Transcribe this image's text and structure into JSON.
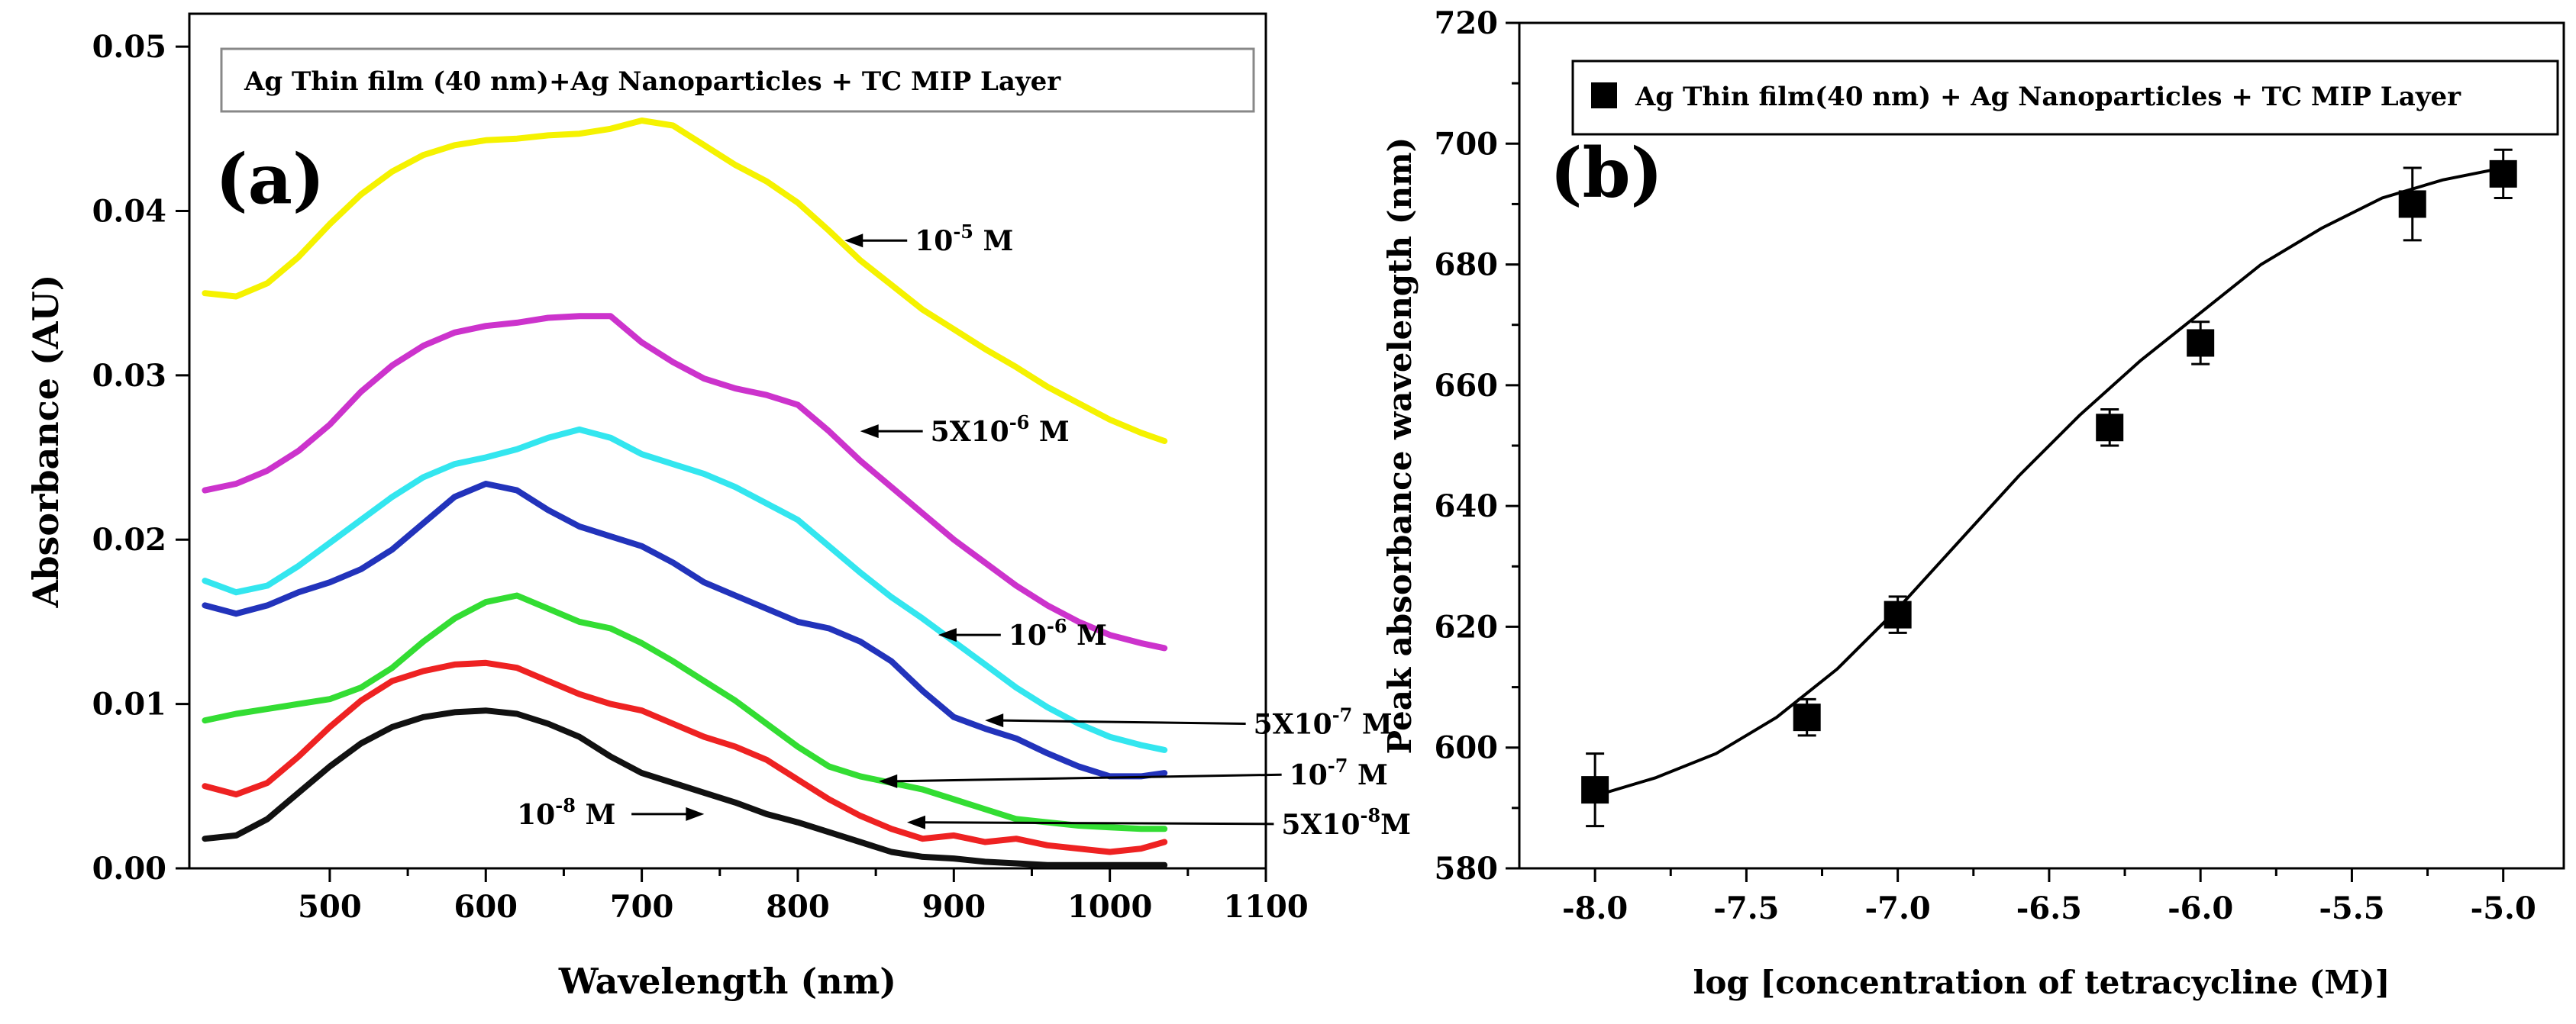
{
  "chart_data": [
    {
      "type": "line",
      "panel_label": "(a)",
      "legend_title": "Ag Thin film (40 nm)+Ag Nanoparticles + TC MIP Layer",
      "xlabel": "Wavelength (nm)",
      "ylabel": "Absorbance (AU)",
      "xlim": [
        410,
        1100
      ],
      "ylim": [
        0.0,
        0.052
      ],
      "x_ticks": [
        500,
        600,
        700,
        800,
        900,
        1000,
        1100
      ],
      "x_tick_labels": [
        "500",
        "600",
        "700",
        "800",
        "900",
        "1000",
        "1100"
      ],
      "y_ticks": [
        0.0,
        0.01,
        0.02,
        0.03,
        0.04,
        0.05
      ],
      "y_tick_labels": [
        "0.00",
        "0.01",
        "0.02",
        "0.03",
        "0.04",
        "0.05"
      ],
      "series": [
        {
          "name": "10-5 M",
          "label_base": "10",
          "label_sup": "-5",
          "label_unit": " M",
          "color": "#f5f200",
          "x": [
            420,
            440,
            460,
            480,
            500,
            520,
            540,
            560,
            580,
            600,
            620,
            640,
            660,
            680,
            700,
            720,
            740,
            760,
            780,
            800,
            820,
            840,
            860,
            880,
            900,
            920,
            940,
            960,
            980,
            1000,
            1020,
            1035
          ],
          "values": [
            0.035,
            0.0348,
            0.0356,
            0.0372,
            0.0392,
            0.041,
            0.0424,
            0.0434,
            0.044,
            0.0443,
            0.0444,
            0.0446,
            0.0447,
            0.045,
            0.0455,
            0.0452,
            0.044,
            0.0428,
            0.0418,
            0.0405,
            0.0388,
            0.037,
            0.0355,
            0.034,
            0.0328,
            0.0316,
            0.0305,
            0.0293,
            0.0283,
            0.0273,
            0.0265,
            0.026
          ],
          "arrow_at": [
            830,
            0.0382
          ],
          "label_at": [
            875,
            0.0382
          ]
        },
        {
          "name": "5X10-6 M",
          "label_base": "5X10",
          "label_sup": "-6",
          "label_unit": " M",
          "color": "#cc33cc",
          "x": [
            420,
            440,
            460,
            480,
            500,
            520,
            540,
            560,
            580,
            600,
            620,
            640,
            660,
            680,
            700,
            720,
            740,
            760,
            780,
            800,
            820,
            840,
            860,
            880,
            900,
            920,
            940,
            960,
            980,
            1000,
            1020,
            1035
          ],
          "values": [
            0.023,
            0.0234,
            0.0242,
            0.0254,
            0.027,
            0.029,
            0.0306,
            0.0318,
            0.0326,
            0.033,
            0.0332,
            0.0335,
            0.0336,
            0.0336,
            0.032,
            0.0308,
            0.0298,
            0.0292,
            0.0288,
            0.0282,
            0.0266,
            0.0248,
            0.0232,
            0.0216,
            0.02,
            0.0186,
            0.0172,
            0.016,
            0.015,
            0.0142,
            0.0137,
            0.0134
          ],
          "arrow_at": [
            840,
            0.0266
          ],
          "label_at": [
            885,
            0.0266
          ]
        },
        {
          "name": "10-6 M",
          "label_base": "10",
          "label_sup": "-6",
          "label_unit": " M",
          "color": "#33e6ef",
          "x": [
            420,
            440,
            460,
            480,
            500,
            520,
            540,
            560,
            580,
            600,
            620,
            640,
            660,
            680,
            700,
            720,
            740,
            760,
            780,
            800,
            820,
            840,
            860,
            880,
            900,
            920,
            940,
            960,
            980,
            1000,
            1020,
            1035
          ],
          "values": [
            0.0175,
            0.0168,
            0.0172,
            0.0184,
            0.0198,
            0.0212,
            0.0226,
            0.0238,
            0.0246,
            0.025,
            0.0255,
            0.0262,
            0.0267,
            0.0262,
            0.0252,
            0.0246,
            0.024,
            0.0232,
            0.0222,
            0.0212,
            0.0196,
            0.018,
            0.0165,
            0.0152,
            0.0138,
            0.0124,
            0.011,
            0.0098,
            0.0088,
            0.008,
            0.0075,
            0.0072
          ],
          "arrow_at": [
            890,
            0.0142
          ],
          "label_at": [
            935,
            0.0142
          ]
        },
        {
          "name": "5X10-7 M",
          "label_base": "5X10",
          "label_sup": "-7",
          "label_unit": " M",
          "color": "#2233bb",
          "x": [
            420,
            440,
            460,
            480,
            500,
            520,
            540,
            560,
            580,
            600,
            620,
            640,
            660,
            680,
            700,
            720,
            740,
            760,
            780,
            800,
            820,
            840,
            860,
            880,
            900,
            920,
            940,
            960,
            980,
            1000,
            1020,
            1035
          ],
          "values": [
            0.016,
            0.0155,
            0.016,
            0.0168,
            0.0174,
            0.0182,
            0.0194,
            0.021,
            0.0226,
            0.0234,
            0.023,
            0.0218,
            0.0208,
            0.0202,
            0.0196,
            0.0186,
            0.0174,
            0.0166,
            0.0158,
            0.015,
            0.0146,
            0.0138,
            0.0126,
            0.0108,
            0.0092,
            0.0085,
            0.0079,
            0.007,
            0.0062,
            0.0056,
            0.0056,
            0.0058
          ],
          "arrow_at": [
            920,
            0.009
          ],
          "label_at": [
            1092,
            0.0088
          ]
        },
        {
          "name": "10-7 M",
          "label_base": "10",
          "label_sup": "-7",
          "label_unit": " M",
          "color": "#33dd33",
          "x": [
            420,
            440,
            460,
            480,
            500,
            520,
            540,
            560,
            580,
            600,
            620,
            640,
            660,
            680,
            700,
            720,
            740,
            760,
            780,
            800,
            820,
            840,
            860,
            880,
            900,
            920,
            940,
            960,
            980,
            1000,
            1020,
            1035
          ],
          "values": [
            0.009,
            0.0094,
            0.0097,
            0.01,
            0.0103,
            0.011,
            0.0122,
            0.0138,
            0.0152,
            0.0162,
            0.0166,
            0.0158,
            0.015,
            0.0146,
            0.0137,
            0.0126,
            0.0114,
            0.0102,
            0.0088,
            0.0074,
            0.0062,
            0.0056,
            0.0052,
            0.0048,
            0.0042,
            0.0036,
            0.003,
            0.0028,
            0.0026,
            0.0025,
            0.0024,
            0.0024
          ],
          "arrow_at": [
            852,
            0.0053
          ],
          "label_at": [
            1115,
            0.0057
          ]
        },
        {
          "name": "5X10-8M",
          "label_base": "5X10",
          "label_sup": "-8",
          "label_unit": "M",
          "color": "#ee2222",
          "x": [
            420,
            440,
            460,
            480,
            500,
            520,
            540,
            560,
            580,
            600,
            620,
            640,
            660,
            680,
            700,
            720,
            740,
            760,
            780,
            800,
            820,
            840,
            860,
            880,
            900,
            920,
            940,
            960,
            980,
            1000,
            1020,
            1035
          ],
          "values": [
            0.005,
            0.0045,
            0.0052,
            0.0068,
            0.0086,
            0.0102,
            0.0114,
            0.012,
            0.0124,
            0.0125,
            0.0122,
            0.0114,
            0.0106,
            0.01,
            0.0096,
            0.0088,
            0.008,
            0.0074,
            0.0066,
            0.0054,
            0.0042,
            0.0032,
            0.0024,
            0.0018,
            0.002,
            0.0016,
            0.0018,
            0.0014,
            0.0012,
            0.001,
            0.0012,
            0.0016
          ],
          "arrow_at": [
            870,
            0.0028
          ],
          "label_at": [
            1110,
            0.0027
          ]
        },
        {
          "name": "10-8 M",
          "label_base": "10",
          "label_sup": "-8",
          "label_unit": " M",
          "color": "#111111",
          "x": [
            420,
            440,
            460,
            480,
            500,
            520,
            540,
            560,
            580,
            600,
            620,
            640,
            660,
            680,
            700,
            720,
            740,
            760,
            780,
            800,
            820,
            840,
            860,
            880,
            900,
            920,
            940,
            960,
            980,
            1000,
            1020,
            1035
          ],
          "values": [
            0.0018,
            0.002,
            0.003,
            0.0046,
            0.0062,
            0.0076,
            0.0086,
            0.0092,
            0.0095,
            0.0096,
            0.0094,
            0.0088,
            0.008,
            0.0068,
            0.0058,
            0.0052,
            0.0046,
            0.004,
            0.0033,
            0.0028,
            0.0022,
            0.0016,
            0.001,
            0.0007,
            0.0006,
            0.0004,
            0.0003,
            0.0002,
            0.0002,
            0.0002,
            0.0002,
            0.0002
          ],
          "arrow_at": [
            740,
            0.0033
          ],
          "label_at": [
            620,
            0.0033
          ]
        }
      ]
    },
    {
      "type": "scatter",
      "panel_label": "(b)",
      "legend_title": "Ag Thin film(40 nm) + Ag Nanoparticles + TC MIP Layer",
      "xlabel": "log [concentration of tetracycline (M)]",
      "ylabel": "Peak absorbance wavelength (nm)",
      "xlim": [
        -8.25,
        -4.8
      ],
      "ylim": [
        580,
        720
      ],
      "x_ticks": [
        -8.0,
        -7.5,
        -7.0,
        -6.5,
        -6.0,
        -5.5,
        -5.0
      ],
      "x_tick_labels": [
        "-8.0",
        "-7.5",
        "-7.0",
        "-6.5",
        "-6.0",
        "-5.5",
        "-5.0"
      ],
      "y_ticks": [
        580,
        600,
        620,
        640,
        660,
        680,
        700,
        720
      ],
      "y_tick_labels": [
        "580",
        "600",
        "620",
        "640",
        "660",
        "680",
        "700",
        "720"
      ],
      "series": [
        {
          "name": "Ag Thin film(40 nm) + Ag Nanoparticles + TC MIP Layer",
          "x": [
            -8.0,
            -7.3,
            -7.0,
            -6.3,
            -6.0,
            -5.3,
            -5.0
          ],
          "values": [
            593,
            605,
            622,
            653,
            667,
            690,
            695
          ],
          "error": [
            6,
            3,
            3,
            3,
            3.5,
            6,
            4
          ]
        }
      ],
      "fit": {
        "x": [
          -8.0,
          -7.8,
          -7.6,
          -7.4,
          -7.2,
          -7.0,
          -6.8,
          -6.6,
          -6.4,
          -6.2,
          -6.0,
          -5.8,
          -5.6,
          -5.4,
          -5.2,
          -5.0
        ],
        "values": [
          592,
          595,
          599,
          605,
          613,
          623,
          634,
          645,
          655,
          664,
          672,
          680,
          686,
          691,
          694,
          696
        ]
      }
    }
  ]
}
